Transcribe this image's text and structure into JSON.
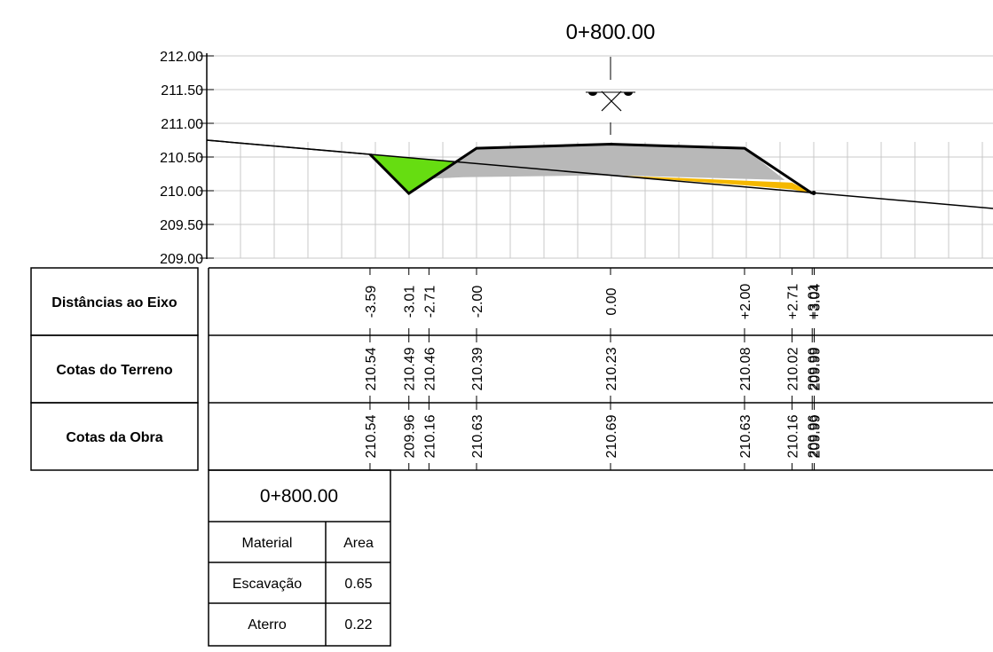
{
  "title": "0+800.00",
  "elevation_axis": {
    "min": 209.0,
    "max": 212.0,
    "step": 0.5,
    "labels": [
      "212.00",
      "211.50",
      "211.00",
      "210.50",
      "210.00",
      "209.50",
      "209.00"
    ]
  },
  "band_labels": {
    "distances": "Distâncias ao Eixo",
    "terrain": "Cotas do Terreno",
    "works": "Cotas da Obra"
  },
  "stations": [
    {
      "offset": "-3.59",
      "terrain": "210.54",
      "works": "210.54"
    },
    {
      "offset": "-3.01",
      "terrain": "210.49",
      "works": "209.96"
    },
    {
      "offset": "-2.71",
      "terrain": "210.46",
      "works": "210.16"
    },
    {
      "offset": "-2.00",
      "terrain": "210.39",
      "works": "210.63"
    },
    {
      "offset": "0.00",
      "terrain": "210.23",
      "works": "210.69"
    },
    {
      "offset": "+2.00",
      "terrain": "210.08",
      "works": "210.63"
    },
    {
      "offset": "+2.71",
      "terrain": "210.02",
      "works": "210.16"
    },
    {
      "offset": "+3.01",
      "terrain": "209.99",
      "works": "209.96"
    },
    {
      "offset": "+3.04",
      "terrain": "209.99",
      "works": "209.99"
    }
  ],
  "area_table": {
    "title": "0+800.00",
    "headers": {
      "material": "Material",
      "area": "Area"
    },
    "rows": [
      {
        "material": "Escavação",
        "area": "0.65"
      },
      {
        "material": "Aterro",
        "area": "0.22"
      }
    ]
  },
  "colors": {
    "excavation_ditch": "#66dd11",
    "cut_body": "#b8b8b8",
    "fill": "#f5b800"
  }
}
